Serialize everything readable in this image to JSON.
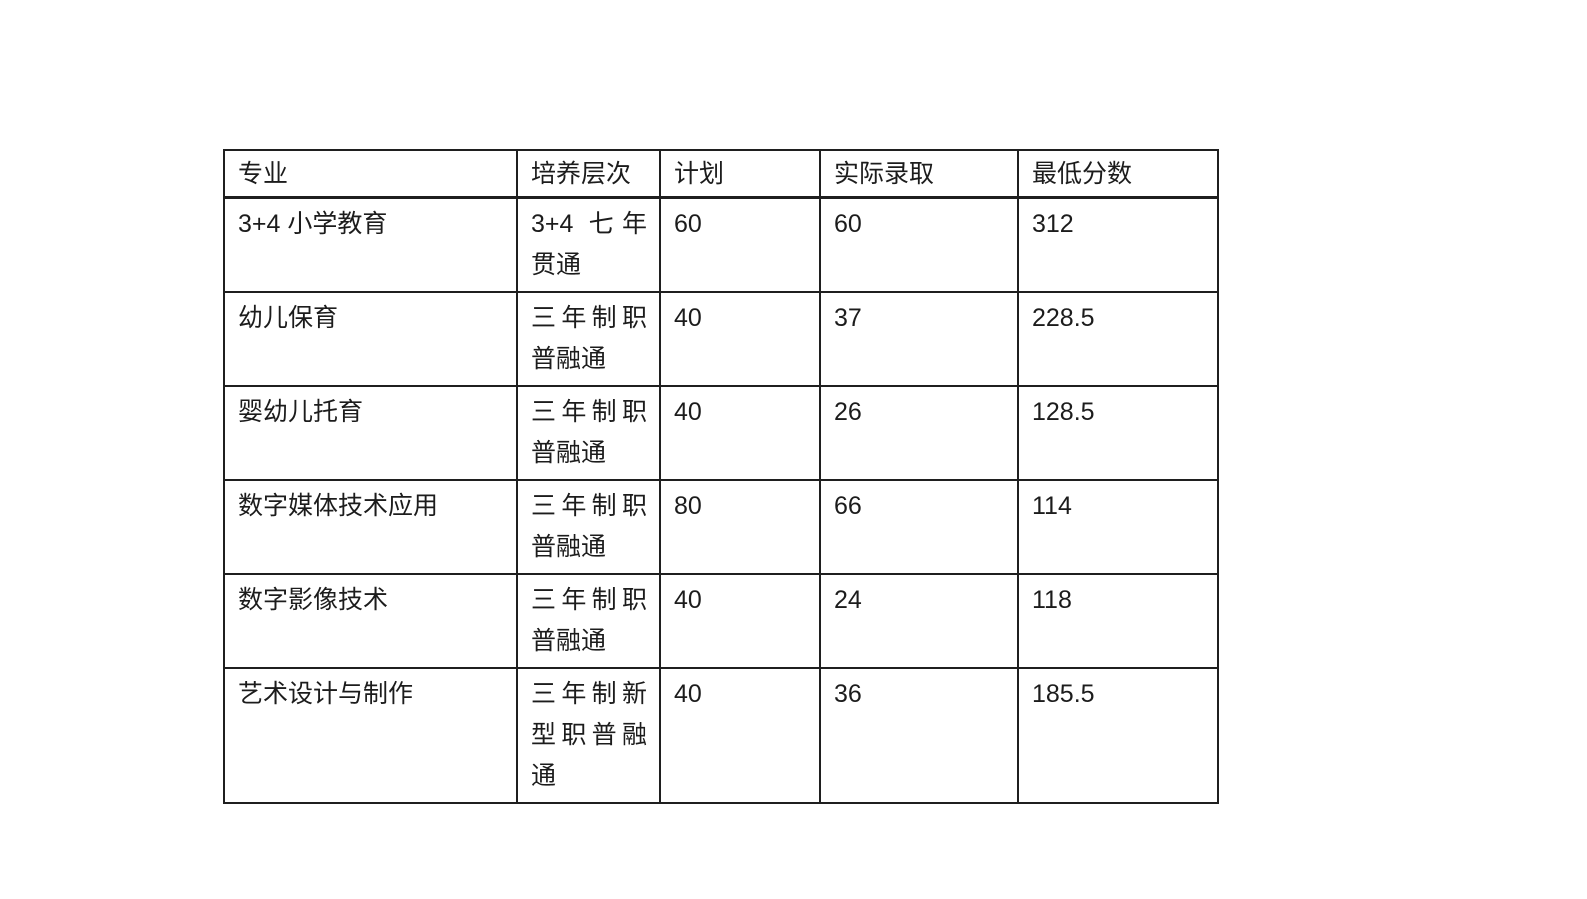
{
  "colors": {
    "background": "#ffffff",
    "text": "#1c1c1c",
    "border": "#1f1f1f"
  },
  "table": {
    "columns": [
      "专业",
      "培养层次",
      "计划",
      "实际录取",
      "最低分数"
    ],
    "rows": [
      {
        "major": "3+4 小学教育",
        "level": "3+4 七年贯通",
        "plan": "60",
        "admitted": "60",
        "min_score": "312"
      },
      {
        "major": "幼儿保育",
        "level": "三年制职普融通",
        "plan": "40",
        "admitted": "37",
        "min_score": "228.5"
      },
      {
        "major": "婴幼儿托育",
        "level": "三年制职普融通",
        "plan": "40",
        "admitted": "26",
        "min_score": "128.5"
      },
      {
        "major": "数字媒体技术应用",
        "level": "三年制职普融通",
        "plan": "80",
        "admitted": "66",
        "min_score": "114"
      },
      {
        "major": "数字影像技术",
        "level": "三年制职普融通",
        "plan": "40",
        "admitted": "24",
        "min_score": "118"
      },
      {
        "major": "艺术设计与制作",
        "level": "三年制新型职普融通",
        "plan": "40",
        "admitted": "36",
        "min_score": "185.5"
      }
    ]
  }
}
